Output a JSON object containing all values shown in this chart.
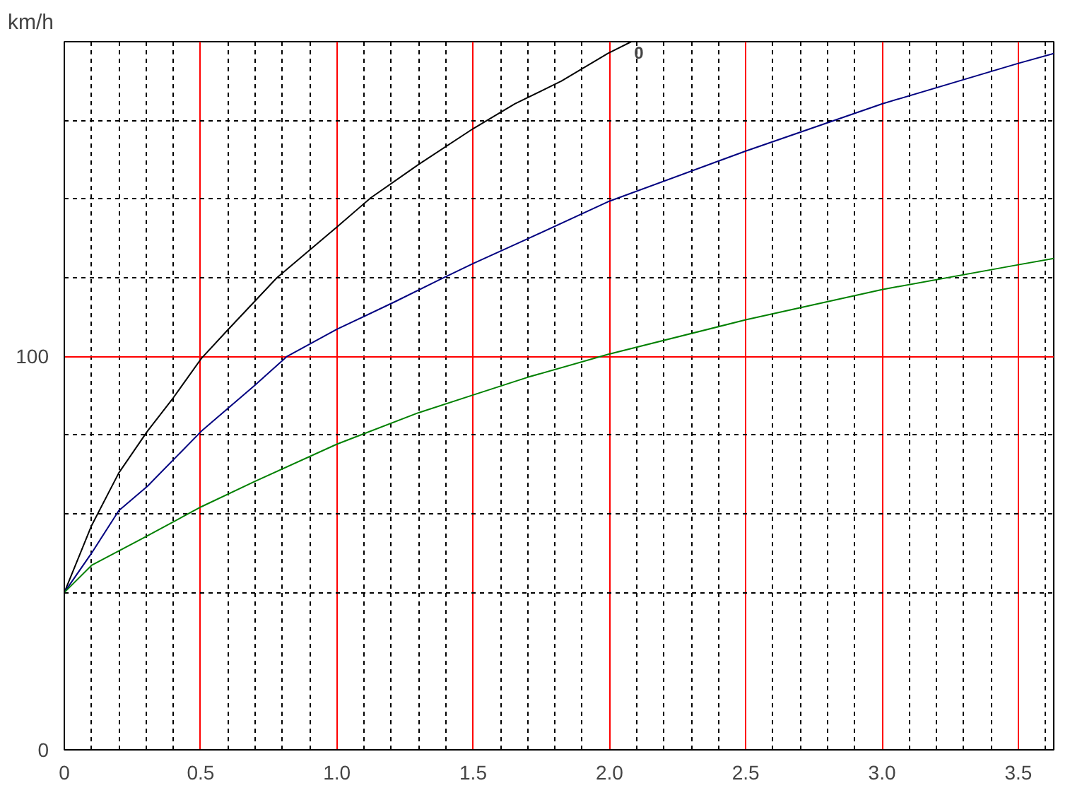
{
  "chart_data": {
    "type": "line",
    "ylabel": "km/h",
    "xlim": [
      0,
      3.63
    ],
    "ylim": [
      0,
      180
    ],
    "xticks": [
      0,
      {
        "value": 0.1,
        "label": null
      },
      {
        "value": 0.2,
        "label": null
      },
      {
        "value": 0.3,
        "label": null
      },
      {
        "value": 0.4,
        "label": null
      },
      0.5,
      {
        "value": 0.6,
        "label": null
      },
      {
        "value": 0.7,
        "label": null
      },
      {
        "value": 0.8,
        "label": null
      },
      {
        "value": 0.9,
        "label": null
      },
      {
        "value": 1.0,
        "label": "1.0"
      },
      {
        "value": 1.1,
        "label": null
      },
      {
        "value": 1.2,
        "label": null
      },
      {
        "value": 1.3,
        "label": null
      },
      {
        "value": 1.4,
        "label": null
      },
      1.5,
      {
        "value": 1.6,
        "label": null
      },
      {
        "value": 1.7,
        "label": null
      },
      {
        "value": 1.8,
        "label": null
      },
      {
        "value": 1.9,
        "label": null
      },
      {
        "value": 2.0,
        "label": "2.0"
      },
      {
        "value": 2.1,
        "label": null
      },
      {
        "value": 2.2,
        "label": null
      },
      {
        "value": 2.3,
        "label": null
      },
      {
        "value": 2.4,
        "label": null
      },
      2.5,
      {
        "value": 2.6,
        "label": null
      },
      {
        "value": 2.7,
        "label": null
      },
      {
        "value": 2.8,
        "label": null
      },
      {
        "value": 2.9,
        "label": null
      },
      {
        "value": 3.0,
        "label": "3.0"
      },
      {
        "value": 3.1,
        "label": null
      },
      {
        "value": 3.2,
        "label": null
      },
      {
        "value": 3.3,
        "label": null
      },
      {
        "value": 3.4,
        "label": null
      },
      3.5,
      {
        "value": 3.6,
        "label": null
      }
    ],
    "yticks": [
      0,
      {
        "value": 40,
        "label": null
      },
      {
        "value": 60,
        "label": null
      },
      {
        "value": 80,
        "label": null
      },
      100,
      {
        "value": 120,
        "label": null
      },
      {
        "value": 140,
        "label": null
      },
      {
        "value": 160,
        "label": null
      }
    ],
    "grid": true,
    "series": [
      {
        "color": "#000000",
        "x": [
          0,
          0.1,
          0.2,
          0.305,
          0.4,
          0.503,
          0.595,
          0.78,
          1.0,
          1.124,
          1.3,
          1.5,
          1.653,
          1.824,
          1.994,
          2.08
        ],
        "values": [
          40,
          57,
          70.4,
          81,
          89.5,
          99.5,
          106.4,
          120,
          132.9,
          140.3,
          148.8,
          157.9,
          164.2,
          170,
          177,
          180
        ]
      },
      {
        "color": "#000080",
        "x": [
          0,
          0.1,
          0.2,
          0.305,
          0.503,
          0.698,
          0.817,
          1.0,
          1.21,
          1.38,
          1.5,
          1.7,
          1.994,
          2.5,
          3.0,
          3.5,
          3.63
        ],
        "values": [
          40,
          50,
          60.8,
          67,
          81,
          92.6,
          100,
          106.9,
          113.8,
          119.6,
          123.6,
          129.9,
          139.3,
          152.2,
          164.2,
          174.5,
          177
        ]
      },
      {
        "color": "#008000",
        "x": [
          0,
          0.1,
          0.305,
          0.503,
          0.698,
          1.0,
          1.3,
          1.5,
          1.7,
          1.994,
          2.5,
          3.0,
          3.5,
          3.63
        ],
        "values": [
          40,
          46.9,
          54.4,
          61.8,
          68.2,
          77.7,
          85.7,
          90.2,
          94.7,
          100.5,
          109.3,
          117,
          123.3,
          124.9
        ]
      }
    ],
    "annotations": [
      {
        "text": "0",
        "x": 2.08,
        "y": 180
      }
    ]
  }
}
